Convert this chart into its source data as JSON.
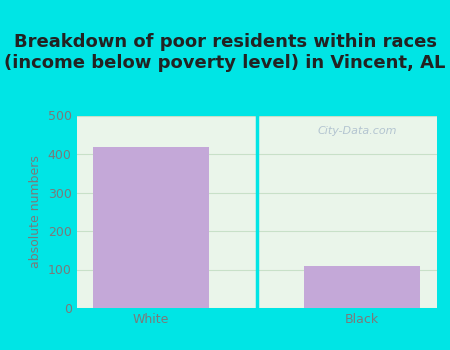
{
  "title": "Breakdown of poor residents within races\n(income below poverty level) in Vincent, AL",
  "categories": [
    "White",
    "Black"
  ],
  "values": [
    417,
    109
  ],
  "bar_color": "#c4a8d8",
  "ylabel": "absolute numbers",
  "ylim": [
    0,
    500
  ],
  "yticks": [
    0,
    100,
    200,
    300,
    400,
    500
  ],
  "background_outer": "#00e5e5",
  "background_inner_left": "#dff0e0",
  "background_inner_right": "#f0f8f0",
  "grid_color": "#d0e8d0",
  "watermark": "City-Data.com",
  "title_fontsize": 13,
  "axis_label_fontsize": 9,
  "tick_fontsize": 9,
  "tick_color": "#7a7a7a",
  "title_color": "#222222"
}
